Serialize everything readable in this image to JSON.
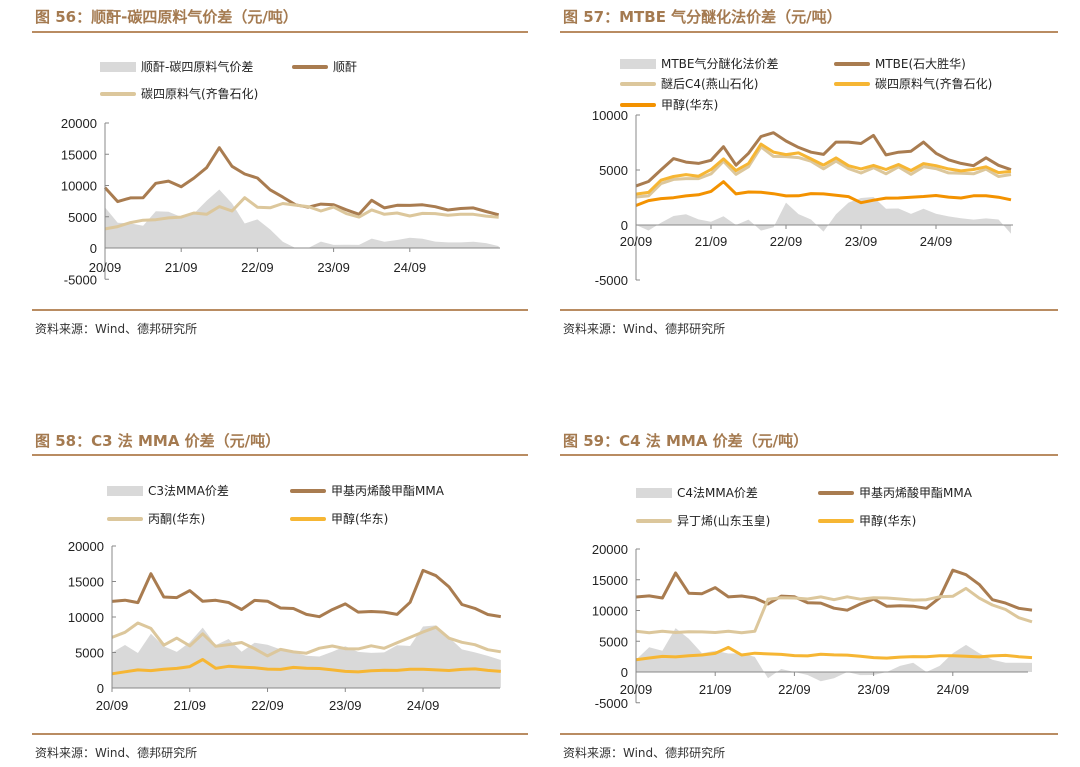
{
  "source_text": "资料来源：Wind、德邦研究所",
  "colors": {
    "gray": "#d9d9d9",
    "brown": "#a97c50",
    "beige": "#dcc79c",
    "yellow": "#f6b634",
    "orange": "#f39200"
  },
  "chart_data": [
    {
      "type": "line",
      "title": "图 56：顺酐-碳四原料气价差（元/吨）",
      "xticks": [
        "20/09",
        "21/09",
        "22/09",
        "23/09",
        "24/09"
      ],
      "yticks": [
        "20000",
        "15000",
        "10000",
        "5000",
        "0",
        "-5000"
      ],
      "ytick_values": [
        20000,
        15000,
        10000,
        5000,
        0,
        -5000
      ],
      "ylim": [
        -5000,
        20000
      ],
      "x_months_step": 2,
      "series": [
        {
          "name": "顺酐-碳四原料气价差",
          "kind": "area",
          "color": "gray",
          "values": [
            6500,
            4000,
            4000,
            3500,
            6000,
            5700,
            5000,
            5500,
            7500,
            9500,
            7000,
            4000,
            4500,
            3000,
            1000,
            0,
            0,
            1000,
            500,
            500,
            500,
            1500,
            1000,
            1300,
            1600,
            1500,
            1000,
            900,
            900,
            1000,
            800,
            300
          ]
        },
        {
          "name": "顺酐",
          "kind": "line",
          "color": "brown",
          "values": [
            9500,
            7500,
            8000,
            8000,
            10500,
            10500,
            10000,
            11000,
            13000,
            16000,
            13000,
            12000,
            11000,
            9500,
            8000,
            7000,
            6500,
            7000,
            7000,
            6000,
            5500,
            7500,
            6500,
            6800,
            6800,
            7000,
            6500,
            6200,
            6200,
            6500,
            5800,
            5300
          ]
        },
        {
          "name": "碳四原料气(齐鲁石化)",
          "kind": "line",
          "color": "beige",
          "values": [
            3000,
            3500,
            4000,
            4500,
            4500,
            4800,
            5000,
            5500,
            5500,
            6500,
            6000,
            8000,
            6500,
            6500,
            7000,
            7000,
            6500,
            6000,
            6500,
            5500,
            5000,
            6000,
            5500,
            5500,
            5200,
            5500,
            5500,
            5300,
            5300,
            5500,
            5000,
            5000
          ]
        }
      ]
    },
    {
      "type": "line",
      "title": "图 57：MTBE 气分醚化法价差（元/吨）",
      "xticks": [
        "20/09",
        "21/09",
        "22/09",
        "23/09",
        "24/09"
      ],
      "yticks": [
        "10000",
        "5000",
        "0",
        "-5000"
      ],
      "ytick_values": [
        10000,
        5000,
        0,
        -5000
      ],
      "ylim": [
        -5000,
        10000
      ],
      "x_months_step": 2,
      "series": [
        {
          "name": "MTBE气分醚化法价差",
          "kind": "area",
          "color": "gray",
          "values": [
            0,
            -500,
            200,
            800,
            1000,
            500,
            300,
            800,
            0,
            500,
            -500,
            -200,
            2000,
            1000,
            500,
            -600,
            1000,
            2000,
            2500,
            2500,
            1500,
            1500,
            1000,
            1500,
            1000,
            800,
            600,
            500,
            600,
            500,
            -800
          ]
        },
        {
          "name": "MTBE(石大胜华)",
          "kind": "line",
          "color": "brown",
          "values": [
            3500,
            4000,
            5000,
            6000,
            5800,
            5500,
            6000,
            7000,
            5500,
            6500,
            8000,
            8500,
            7500,
            7200,
            6500,
            6500,
            7500,
            7500,
            7500,
            8000,
            6500,
            6500,
            6800,
            7500,
            6500,
            6000,
            5500,
            5500,
            6000,
            5500,
            5000
          ]
        },
        {
          "name": "醚后C4(燕山石化)",
          "kind": "line",
          "color": "beige",
          "values": [
            2500,
            2700,
            3700,
            4200,
            4200,
            4200,
            4700,
            5700,
            4700,
            5200,
            7200,
            6200,
            6200,
            6200,
            5700,
            5200,
            5700,
            5200,
            4700,
            5200,
            4700,
            5200,
            4700,
            5200,
            5200,
            4700,
            4700,
            4700,
            5000,
            4500,
            4500
          ]
        },
        {
          "name": "碳四原料气(齐鲁石化)",
          "kind": "line",
          "color": "yellow",
          "values": [
            2800,
            3000,
            4000,
            4500,
            4500,
            4500,
            5000,
            6000,
            5000,
            5500,
            7500,
            6500,
            6500,
            6500,
            6000,
            5500,
            6000,
            5500,
            5000,
            5500,
            5000,
            5500,
            5000,
            5500,
            5500,
            5000,
            5000,
            5000,
            5300,
            4800,
            4800
          ]
        },
        {
          "name": "甲醇(华东)",
          "kind": "line",
          "color": "orange",
          "values": [
            1800,
            2200,
            2400,
            2500,
            2600,
            2800,
            3000,
            4000,
            2800,
            3000,
            3000,
            2800,
            2700,
            2600,
            2900,
            2800,
            2700,
            2600,
            2000,
            2300,
            2400,
            2500,
            2500,
            2600,
            2700,
            2500,
            2500,
            2600,
            2700,
            2500,
            2300
          ]
        }
      ]
    },
    {
      "type": "line",
      "title": "图 58：C3 法 MMA 价差（元/吨）",
      "xticks": [
        "20/09",
        "21/09",
        "22/09",
        "23/09",
        "24/09"
      ],
      "yticks": [
        "20000",
        "15000",
        "10000",
        "5000",
        "0"
      ],
      "ytick_values": [
        20000,
        15000,
        10000,
        5000,
        0
      ],
      "ylim": [
        0,
        20000
      ],
      "x_months_step": 2,
      "series": [
        {
          "name": "C3法MMA价差",
          "kind": "area",
          "color": "gray",
          "values": [
            5000,
            6000,
            5000,
            7500,
            6000,
            5000,
            6500,
            8500,
            6000,
            7000,
            5000,
            6500,
            6000,
            5500,
            5000,
            4500,
            4500,
            5000,
            6000,
            5000,
            5000,
            5000,
            6000,
            6000,
            8500,
            9000,
            7000,
            5500,
            5000,
            4500,
            4000
          ]
        },
        {
          "name": "甲基丙烯酸甲酯MMA",
          "kind": "line",
          "color": "brown",
          "values": [
            12000,
            12500,
            12000,
            16000,
            13000,
            12500,
            14000,
            12000,
            12500,
            12000,
            11000,
            12500,
            12000,
            11500,
            11000,
            10500,
            10000,
            11000,
            12000,
            10500,
            11000,
            10500,
            10500,
            12000,
            16500,
            16000,
            14000,
            12000,
            11000,
            10500,
            10000
          ]
        },
        {
          "name": "丙酮(华东)",
          "kind": "line",
          "color": "beige",
          "values": [
            7000,
            8000,
            9000,
            8500,
            6000,
            7000,
            6000,
            7500,
            6000,
            6000,
            6500,
            5500,
            4500,
            5500,
            5000,
            5000,
            5500,
            6000,
            5500,
            5500,
            6000,
            5500,
            6500,
            7000,
            8000,
            8500,
            7000,
            6500,
            6000,
            5500,
            5000
          ]
        },
        {
          "name": "甲醇(华东)",
          "kind": "line",
          "color": "yellow",
          "values": [
            2000,
            2300,
            2500,
            2500,
            2600,
            2800,
            3000,
            4000,
            2800,
            3000,
            3000,
            2800,
            2700,
            2600,
            2900,
            2800,
            2700,
            2600,
            2300,
            2300,
            2400,
            2500,
            2500,
            2600,
            2700,
            2500,
            2500,
            2600,
            2700,
            2500,
            2300
          ]
        }
      ]
    },
    {
      "type": "line",
      "title": "图 59：C4 法 MMA 价差（元/吨）",
      "xticks": [
        "20/09",
        "21/09",
        "22/09",
        "23/09",
        "24/09"
      ],
      "yticks": [
        "20000",
        "15000",
        "10000",
        "5000",
        "0",
        "-5000"
      ],
      "ytick_values": [
        20000,
        15000,
        10000,
        5000,
        0,
        -5000
      ],
      "ylim": [
        -5000,
        20000
      ],
      "x_months_step": 2,
      "series": [
        {
          "name": "C4法MMA价差",
          "kind": "area",
          "color": "gray",
          "values": [
            2000,
            4000,
            3500,
            7000,
            5500,
            3000,
            3500,
            3000,
            3000,
            2500,
            -1000,
            500,
            0,
            -500,
            -1500,
            -1000,
            0,
            -500,
            -500,
            0,
            1000,
            1500,
            0,
            1000,
            3000,
            4500,
            3000,
            2000,
            1500,
            1500,
            1500
          ]
        },
        {
          "name": "甲基丙烯酸甲酯MMA",
          "kind": "line",
          "color": "brown",
          "values": [
            12000,
            12500,
            12000,
            16000,
            13000,
            12500,
            14000,
            12000,
            12500,
            12000,
            11000,
            12500,
            12000,
            11500,
            11000,
            10500,
            10000,
            11000,
            12000,
            10500,
            11000,
            10500,
            10500,
            12000,
            16500,
            16000,
            14000,
            12000,
            11000,
            10500,
            10000
          ]
        },
        {
          "name": "异丁烯(山东玉皇)",
          "kind": "line",
          "color": "beige",
          "values": [
            6500,
            6500,
            6500,
            6500,
            6500,
            6500,
            6500,
            6500,
            6500,
            6500,
            12000,
            12000,
            12000,
            12000,
            12000,
            12000,
            12000,
            12000,
            12000,
            12000,
            12000,
            11500,
            12000,
            12000,
            12500,
            13500,
            12000,
            11000,
            10000,
            9000,
            8000
          ]
        },
        {
          "name": "甲醇(华东)",
          "kind": "line",
          "color": "yellow",
          "values": [
            2000,
            2300,
            2500,
            2500,
            2600,
            2800,
            3000,
            4000,
            2800,
            3000,
            3000,
            2800,
            2700,
            2600,
            2900,
            2800,
            2700,
            2600,
            2300,
            2300,
            2400,
            2500,
            2500,
            2600,
            2700,
            2500,
            2500,
            2600,
            2700,
            2500,
            2300
          ]
        }
      ]
    }
  ]
}
